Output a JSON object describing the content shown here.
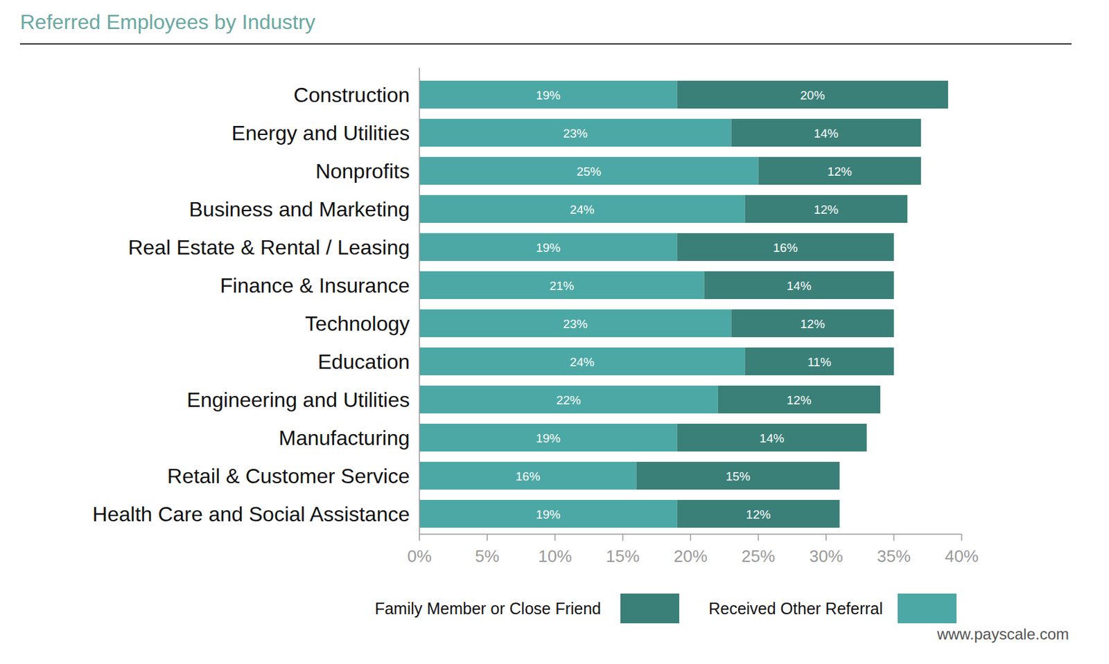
{
  "chart_data": {
    "type": "bar",
    "title": "Referred Employees by Industry",
    "source": "www.payscale.com",
    "orientation": "horizontal",
    "stacked": true,
    "data_labels": true,
    "grid": false,
    "legend": "bottom",
    "categories": [
      "Construction",
      "Energy and Utilities",
      "Nonprofits",
      "Business and Marketing",
      "Real Estate & Rental / Leasing",
      "Finance & Insurance",
      "Technology",
      "Education",
      "Engineering and Utilities",
      "Manufacturing",
      "Retail & Customer Service",
      "Health Care and Social Assistance"
    ],
    "series": [
      {
        "name": "Received Other Referral",
        "color": "#4ca8a4",
        "values": [
          19,
          23,
          25,
          24,
          19,
          21,
          23,
          24,
          22,
          19,
          16,
          19
        ],
        "value_labels": [
          "19%",
          "23%",
          "25%",
          "24%",
          "19%",
          "21%",
          "23%",
          "24%",
          "22%",
          "19%",
          "16%",
          "19%"
        ]
      },
      {
        "name": "Family Member or Close Friend",
        "color": "#3a8078",
        "values": [
          20,
          14,
          12,
          12,
          16,
          14,
          12,
          11,
          12,
          14,
          15,
          12
        ],
        "value_labels": [
          "20%",
          "14%",
          "12%",
          "12%",
          "16%",
          "14%",
          "12%",
          "11%",
          "12%",
          "14%",
          "15%",
          "12%"
        ]
      }
    ],
    "xlim": [
      0,
      40
    ],
    "xticks": [
      {
        "value": 0,
        "label": "0%"
      },
      {
        "value": 5,
        "label": "5%"
      },
      {
        "value": 10,
        "label": "10%"
      },
      {
        "value": 15,
        "label": "15%"
      },
      {
        "value": 20,
        "label": "20%"
      },
      {
        "value": 25,
        "label": "25%"
      },
      {
        "value": 30,
        "label": "30%"
      },
      {
        "value": 35,
        "label": "35%"
      },
      {
        "value": 40,
        "label": "40%"
      }
    ]
  }
}
